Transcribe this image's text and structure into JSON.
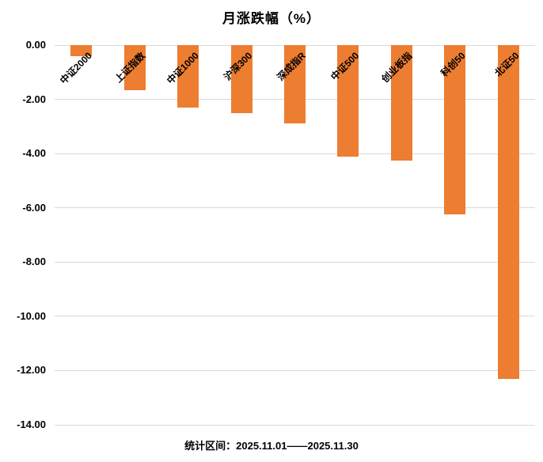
{
  "chart_data": {
    "type": "bar",
    "title": "月涨跌幅（%）",
    "categories": [
      "中证2000",
      "上证指数",
      "中证1000",
      "沪深300",
      "深成指R",
      "中证500",
      "创业板指",
      "科创50",
      "北证50"
    ],
    "values": [
      -0.4,
      -1.65,
      -2.3,
      -2.5,
      -2.9,
      -4.1,
      -4.25,
      -6.25,
      -12.3
    ],
    "ylim": [
      -14,
      0
    ],
    "ytick_labels": [
      "0.00",
      "-2.00",
      "-4.00",
      "-6.00",
      "-8.00",
      "-10.00",
      "-12.00",
      "-14.00"
    ],
    "ytick_values": [
      0,
      -2,
      -4,
      -6,
      -8,
      -10,
      -12,
      -14
    ],
    "grid": true,
    "legend_position": "none",
    "bar_color": "#ED7D31",
    "gridline_color": "#D9D9D9",
    "footer": "统计区间：2025.11.01——2025.11.30"
  }
}
